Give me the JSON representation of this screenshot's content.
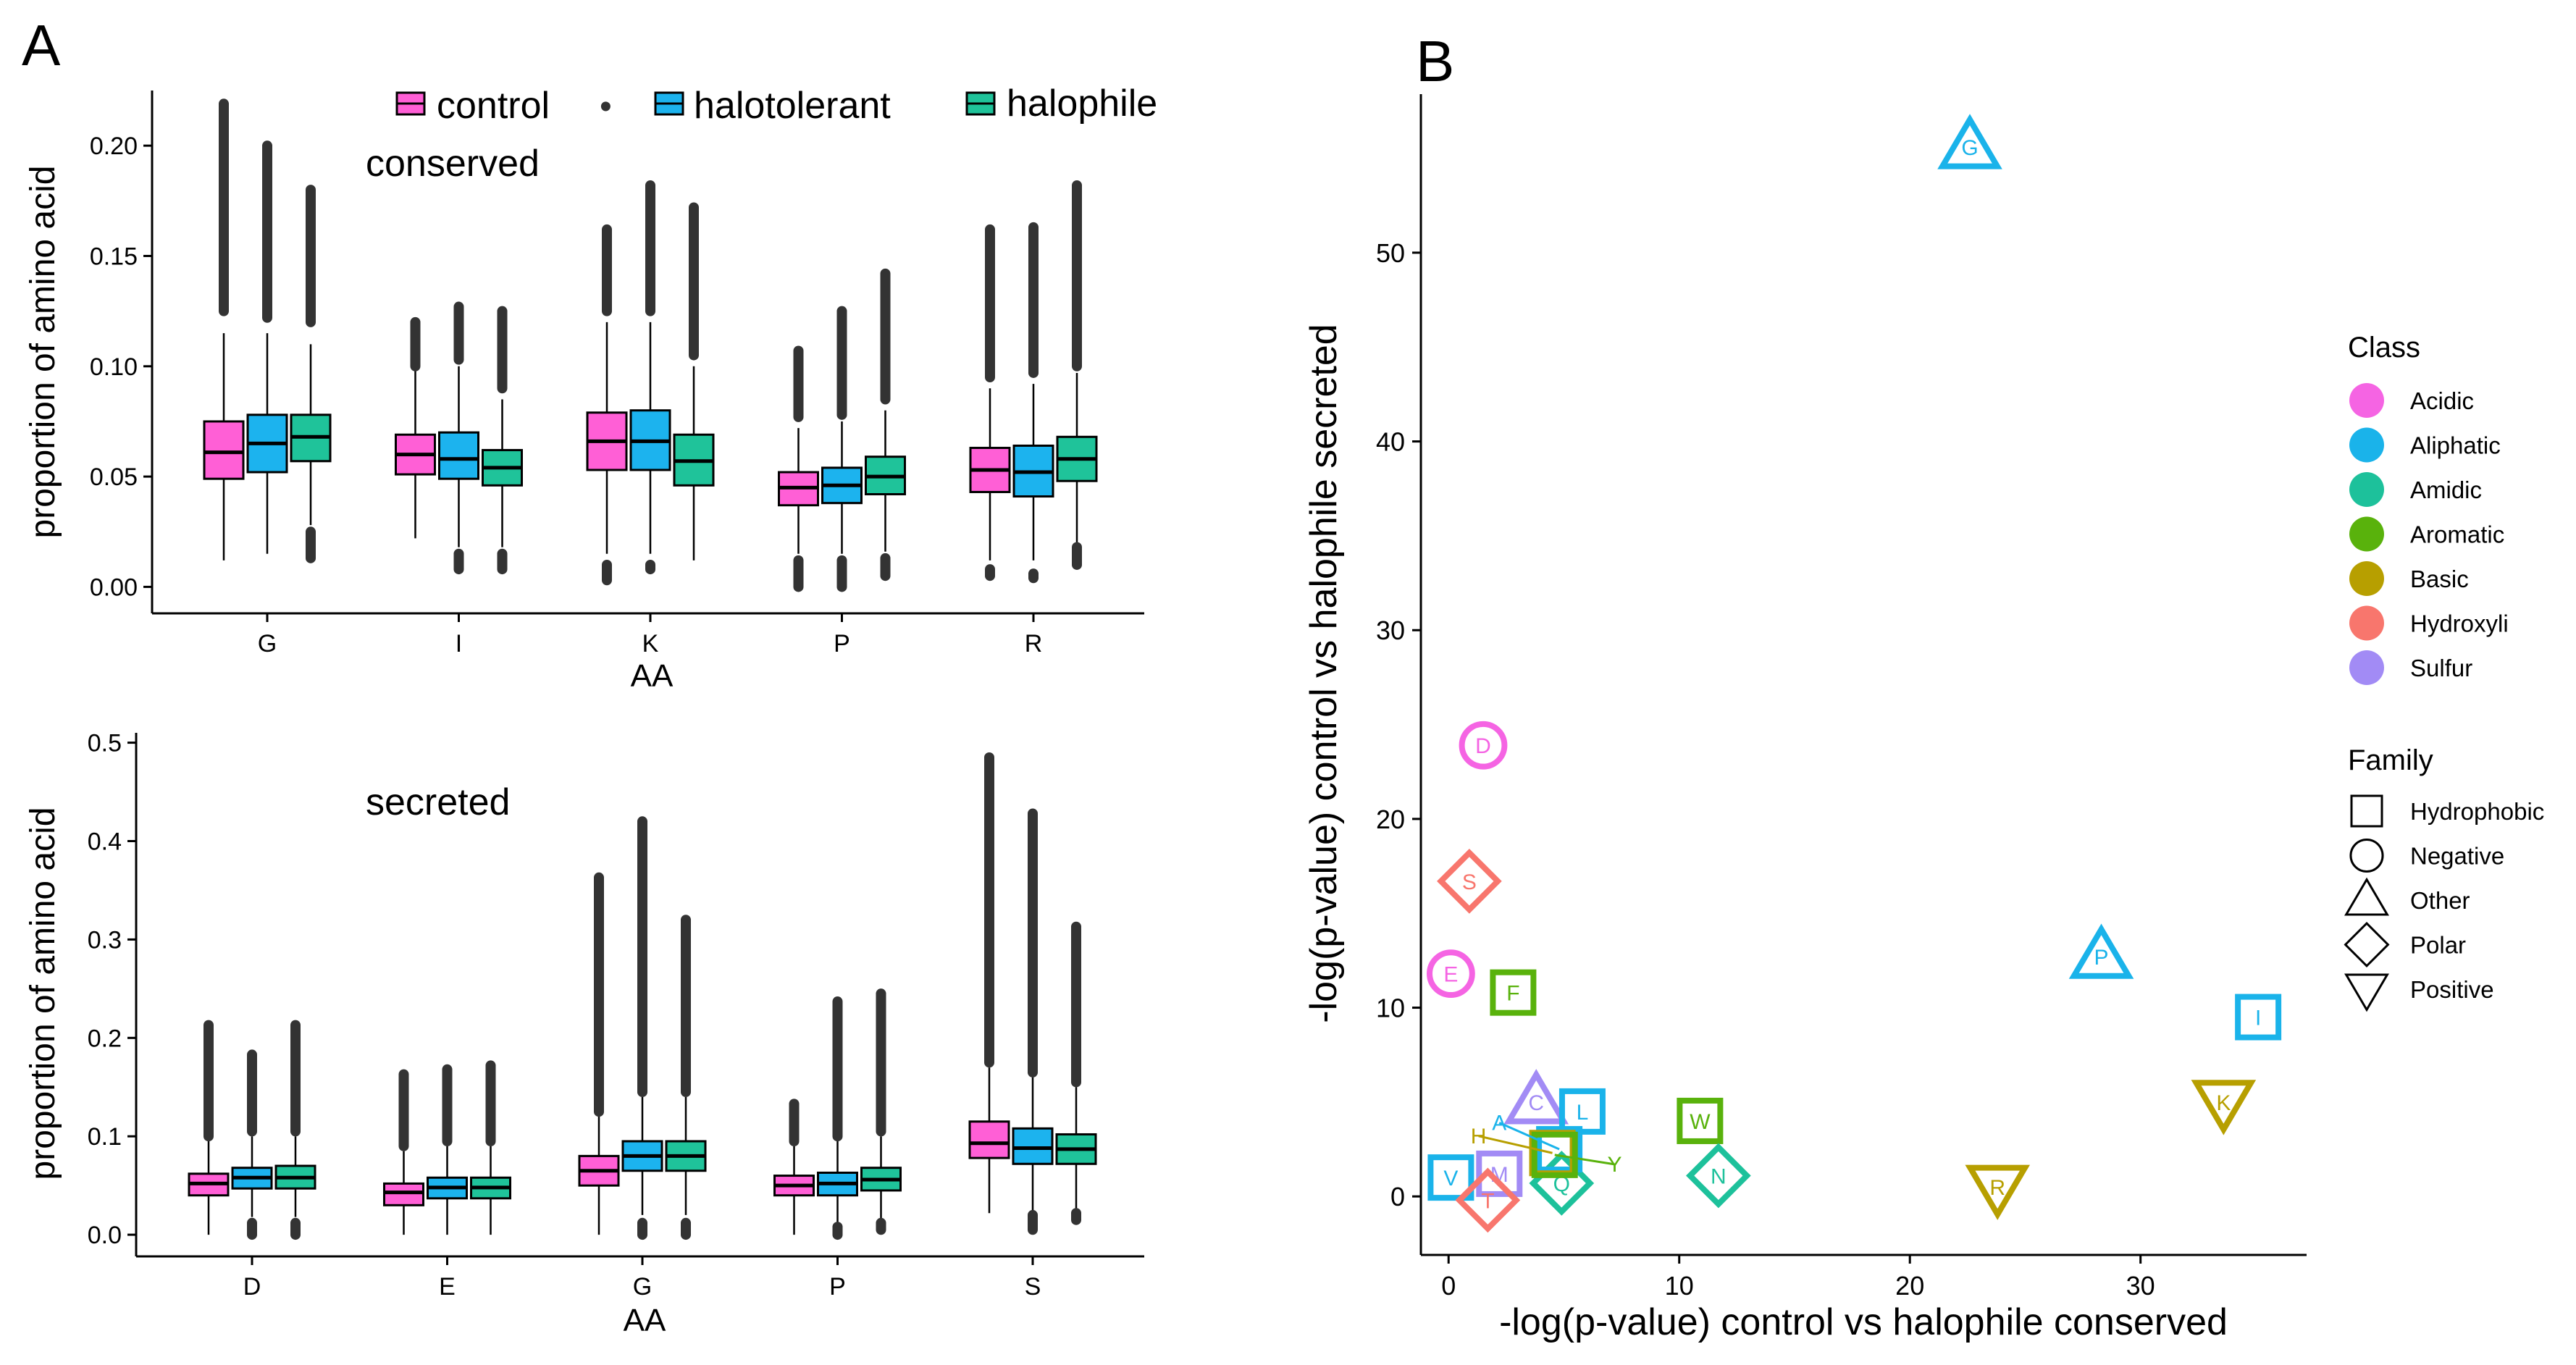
{
  "panel_labels": [
    "A",
    "B"
  ],
  "legend": {
    "control": "control",
    "halotolerant": "halotolerant",
    "halophile": "halophile",
    "outlier_symbol": "•"
  },
  "colors": {
    "control": "#ff5fd6",
    "halotolerant": "#1cb3ee",
    "halophile": "#1fc39a",
    "Acidic": "#f564e3",
    "Aliphatic": "#1ab3ea",
    "Amidic": "#1dc19b",
    "Aromatic": "#59b20c",
    "Basic": "#b79f00",
    "Hydroxyli": "#f8766d",
    "Sulfur": "#a28bf5"
  },
  "chart_data": [
    {
      "type": "box",
      "panel": "A-top",
      "annotation": "conserved",
      "xlabel": "AA",
      "ylabel": "proportion of amino acid",
      "ylim": [
        -0.012,
        0.225
      ],
      "yticks": [
        0.0,
        0.05,
        0.1,
        0.15,
        0.2
      ],
      "ytick_labels": [
        "0.00",
        "0.05",
        "0.10",
        "0.15",
        "0.20"
      ],
      "categories": [
        "G",
        "I",
        "K",
        "P",
        "R"
      ],
      "series_names": [
        "control",
        "halotolerant",
        "halophile"
      ],
      "boxes": [
        [
          {
            "q1": 0.049,
            "med": 0.061,
            "q3": 0.075,
            "lo": 0.012,
            "hi": 0.115,
            "omin": 0.125,
            "omax": 0.219
          },
          {
            "q1": 0.052,
            "med": 0.065,
            "q3": 0.078,
            "lo": 0.015,
            "hi": 0.115,
            "omin": 0.122,
            "omax": 0.2
          },
          {
            "q1": 0.057,
            "med": 0.068,
            "q3": 0.078,
            "lo": 0.028,
            "hi": 0.11,
            "omin": 0.12,
            "omax": 0.18,
            "lmin": 0.013,
            "lmax": 0.025
          }
        ],
        [
          {
            "q1": 0.051,
            "med": 0.06,
            "q3": 0.069,
            "lo": 0.022,
            "hi": 0.098,
            "omin": 0.1,
            "omax": 0.12
          },
          {
            "q1": 0.049,
            "med": 0.058,
            "q3": 0.07,
            "lo": 0.018,
            "hi": 0.1,
            "omin": 0.103,
            "omax": 0.127,
            "lmin": 0.008,
            "lmax": 0.015
          },
          {
            "q1": 0.046,
            "med": 0.054,
            "q3": 0.062,
            "lo": 0.018,
            "hi": 0.085,
            "omin": 0.09,
            "omax": 0.125,
            "lmin": 0.008,
            "lmax": 0.015
          }
        ],
        [
          {
            "q1": 0.053,
            "med": 0.066,
            "q3": 0.079,
            "lo": 0.015,
            "hi": 0.12,
            "omin": 0.125,
            "omax": 0.162,
            "lmin": 0.003,
            "lmax": 0.01
          },
          {
            "q1": 0.053,
            "med": 0.066,
            "q3": 0.08,
            "lo": 0.015,
            "hi": 0.12,
            "omin": 0.125,
            "omax": 0.182,
            "lmin": 0.008,
            "lmax": 0.01
          },
          {
            "q1": 0.046,
            "med": 0.057,
            "q3": 0.069,
            "lo": 0.012,
            "hi": 0.1,
            "omin": 0.105,
            "omax": 0.172
          }
        ],
        [
          {
            "q1": 0.037,
            "med": 0.045,
            "q3": 0.052,
            "lo": 0.015,
            "hi": 0.072,
            "omin": 0.077,
            "omax": 0.107,
            "lmin": 0.0,
            "lmax": 0.012
          },
          {
            "q1": 0.038,
            "med": 0.046,
            "q3": 0.054,
            "lo": 0.015,
            "hi": 0.075,
            "omin": 0.078,
            "omax": 0.125,
            "lmin": 0.0,
            "lmax": 0.012
          },
          {
            "q1": 0.042,
            "med": 0.05,
            "q3": 0.059,
            "lo": 0.016,
            "hi": 0.08,
            "omin": 0.085,
            "omax": 0.142,
            "lmin": 0.005,
            "lmax": 0.013
          }
        ],
        [
          {
            "q1": 0.043,
            "med": 0.053,
            "q3": 0.063,
            "lo": 0.012,
            "hi": 0.09,
            "omin": 0.095,
            "omax": 0.162,
            "lmin": 0.005,
            "lmax": 0.008
          },
          {
            "q1": 0.041,
            "med": 0.052,
            "q3": 0.064,
            "lo": 0.012,
            "hi": 0.092,
            "omin": 0.097,
            "omax": 0.163,
            "lmin": 0.004,
            "lmax": 0.006
          },
          {
            "q1": 0.048,
            "med": 0.058,
            "q3": 0.068,
            "lo": 0.02,
            "hi": 0.097,
            "omin": 0.1,
            "omax": 0.182,
            "lmin": 0.01,
            "lmax": 0.018
          }
        ]
      ]
    },
    {
      "type": "box",
      "panel": "A-bottom",
      "annotation": "secreted",
      "xlabel": "AA",
      "ylabel": "proportion of amino acid",
      "ylim": [
        -0.022,
        0.51
      ],
      "yticks": [
        0.0,
        0.1,
        0.2,
        0.3,
        0.4,
        0.5
      ],
      "ytick_labels": [
        "0.0",
        "0.1",
        "0.2",
        "0.3",
        "0.4",
        "0.5"
      ],
      "categories": [
        "D",
        "E",
        "G",
        "P",
        "S"
      ],
      "series_names": [
        "control",
        "halotolerant",
        "halophile"
      ],
      "boxes": [
        [
          {
            "q1": 0.04,
            "med": 0.052,
            "q3": 0.062,
            "lo": 0.0,
            "hi": 0.095,
            "omin": 0.1,
            "omax": 0.213
          },
          {
            "q1": 0.047,
            "med": 0.058,
            "q3": 0.068,
            "lo": 0.018,
            "hi": 0.1,
            "omin": 0.105,
            "omax": 0.183,
            "lmin": 0.0,
            "lmax": 0.012
          },
          {
            "q1": 0.047,
            "med": 0.058,
            "q3": 0.07,
            "lo": 0.018,
            "hi": 0.1,
            "omin": 0.105,
            "omax": 0.213,
            "lmin": 0.0,
            "lmax": 0.012
          }
        ],
        [
          {
            "q1": 0.03,
            "med": 0.043,
            "q3": 0.052,
            "lo": 0.0,
            "hi": 0.085,
            "omin": 0.09,
            "omax": 0.163
          },
          {
            "q1": 0.037,
            "med": 0.048,
            "q3": 0.058,
            "lo": 0.0,
            "hi": 0.09,
            "omin": 0.095,
            "omax": 0.168
          },
          {
            "q1": 0.037,
            "med": 0.048,
            "q3": 0.058,
            "lo": 0.0,
            "hi": 0.09,
            "omin": 0.095,
            "omax": 0.172
          }
        ],
        [
          {
            "q1": 0.05,
            "med": 0.065,
            "q3": 0.08,
            "lo": 0.0,
            "hi": 0.12,
            "omin": 0.125,
            "omax": 0.363
          },
          {
            "q1": 0.065,
            "med": 0.08,
            "q3": 0.095,
            "lo": 0.02,
            "hi": 0.14,
            "omin": 0.145,
            "omax": 0.42,
            "lmin": 0.0,
            "lmax": 0.012
          },
          {
            "q1": 0.065,
            "med": 0.08,
            "q3": 0.095,
            "lo": 0.02,
            "hi": 0.14,
            "omin": 0.145,
            "omax": 0.32,
            "lmin": 0.0,
            "lmax": 0.012
          }
        ],
        [
          {
            "q1": 0.04,
            "med": 0.05,
            "q3": 0.06,
            "lo": 0.0,
            "hi": 0.09,
            "omin": 0.095,
            "omax": 0.133
          },
          {
            "q1": 0.04,
            "med": 0.052,
            "q3": 0.063,
            "lo": 0.01,
            "hi": 0.095,
            "omin": 0.1,
            "omax": 0.237,
            "lmin": 0.0,
            "lmax": 0.008
          },
          {
            "q1": 0.045,
            "med": 0.056,
            "q3": 0.068,
            "lo": 0.015,
            "hi": 0.1,
            "omin": 0.105,
            "omax": 0.245,
            "lmin": 0.005,
            "lmax": 0.012
          }
        ],
        [
          {
            "q1": 0.078,
            "med": 0.093,
            "q3": 0.115,
            "lo": 0.022,
            "hi": 0.17,
            "omin": 0.175,
            "omax": 0.485
          },
          {
            "q1": 0.072,
            "med": 0.088,
            "q3": 0.108,
            "lo": 0.025,
            "hi": 0.16,
            "omin": 0.165,
            "omax": 0.428,
            "lmin": 0.005,
            "lmax": 0.02
          },
          {
            "q1": 0.072,
            "med": 0.087,
            "q3": 0.102,
            "lo": 0.025,
            "hi": 0.15,
            "omin": 0.155,
            "omax": 0.313,
            "lmin": 0.015,
            "lmax": 0.022
          }
        ]
      ]
    },
    {
      "type": "scatter",
      "panel": "B",
      "xlabel": "-log(p-value) control vs halophile conserved",
      "ylabel": "-log(p-value) control vs halophile secreted",
      "xlim": [
        -1.2,
        37.2
      ],
      "ylim": [
        -3.1,
        58.4
      ],
      "xticks": [
        0,
        10,
        20,
        30
      ],
      "yticks": [
        0,
        10,
        20,
        30,
        40,
        50
      ],
      "legend_class_title": "Class",
      "legend_family_title": "Family",
      "classes": [
        "Acidic",
        "Aliphatic",
        "Amidic",
        "Aromatic",
        "Basic",
        "Hydroxyli",
        "Sulfur"
      ],
      "families": [
        "Hydrophobic",
        "Negative",
        "Other",
        "Polar",
        "Positive"
      ],
      "points": [
        {
          "label": "G",
          "x": 22.6,
          "y": 55.6,
          "class": "Aliphatic",
          "family": "Other"
        },
        {
          "label": "D",
          "x": 1.5,
          "y": 23.9,
          "class": "Acidic",
          "family": "Negative"
        },
        {
          "label": "S",
          "x": 0.9,
          "y": 16.7,
          "class": "Hydroxyli",
          "family": "Polar"
        },
        {
          "label": "E",
          "x": 0.1,
          "y": 11.8,
          "class": "Acidic",
          "family": "Negative"
        },
        {
          "label": "F",
          "x": 2.8,
          "y": 10.8,
          "class": "Aromatic",
          "family": "Hydrophobic"
        },
        {
          "label": "P",
          "x": 28.3,
          "y": 12.7,
          "class": "Aliphatic",
          "family": "Other"
        },
        {
          "label": "I",
          "x": 35.1,
          "y": 9.5,
          "class": "Aliphatic",
          "family": "Hydrophobic"
        },
        {
          "label": "K",
          "x": 33.6,
          "y": 5.0,
          "class": "Basic",
          "family": "Positive"
        },
        {
          "label": "W",
          "x": 10.9,
          "y": 4.0,
          "class": "Aromatic",
          "family": "Hydrophobic"
        },
        {
          "label": "N",
          "x": 11.7,
          "y": 1.1,
          "class": "Amidic",
          "family": "Polar"
        },
        {
          "label": "R",
          "x": 23.8,
          "y": 0.5,
          "class": "Basic",
          "family": "Positive"
        },
        {
          "label": "C",
          "x": 3.8,
          "y": 5.0,
          "class": "Sulfur",
          "family": "Other"
        },
        {
          "label": "L",
          "x": 5.8,
          "y": 4.5,
          "class": "Aliphatic",
          "family": "Hydrophobic"
        },
        {
          "label": "V",
          "x": 0.1,
          "y": 1.0,
          "class": "Aliphatic",
          "family": "Hydrophobic"
        },
        {
          "label": "M",
          "x": 2.2,
          "y": 1.2,
          "class": "Sulfur",
          "family": "Hydrophobic"
        },
        {
          "label": "T",
          "x": 1.7,
          "y": -0.2,
          "class": "Hydroxyli",
          "family": "Polar"
        },
        {
          "label": "Q",
          "x": 4.9,
          "y": 0.7,
          "class": "Amidic",
          "family": "Polar"
        },
        {
          "label": "A",
          "x": 4.8,
          "y": 2.5,
          "class": "Aliphatic",
          "family": "Hydrophobic"
        },
        {
          "label": "H",
          "x": 4.5,
          "y": 2.3,
          "class": "Basic",
          "family": "Hydrophobic"
        },
        {
          "label": "Y",
          "x": 4.6,
          "y": 2.2,
          "class": "Aromatic",
          "family": "Hydrophobic"
        }
      ],
      "offset_labels": [
        {
          "label": "A",
          "class": "Aliphatic",
          "x": 2.2,
          "y": 3.9
        },
        {
          "label": "H",
          "class": "Basic",
          "x": 1.3,
          "y": 3.2
        },
        {
          "label": "Y",
          "class": "Aromatic",
          "x": 7.2,
          "y": 1.7
        }
      ]
    }
  ]
}
